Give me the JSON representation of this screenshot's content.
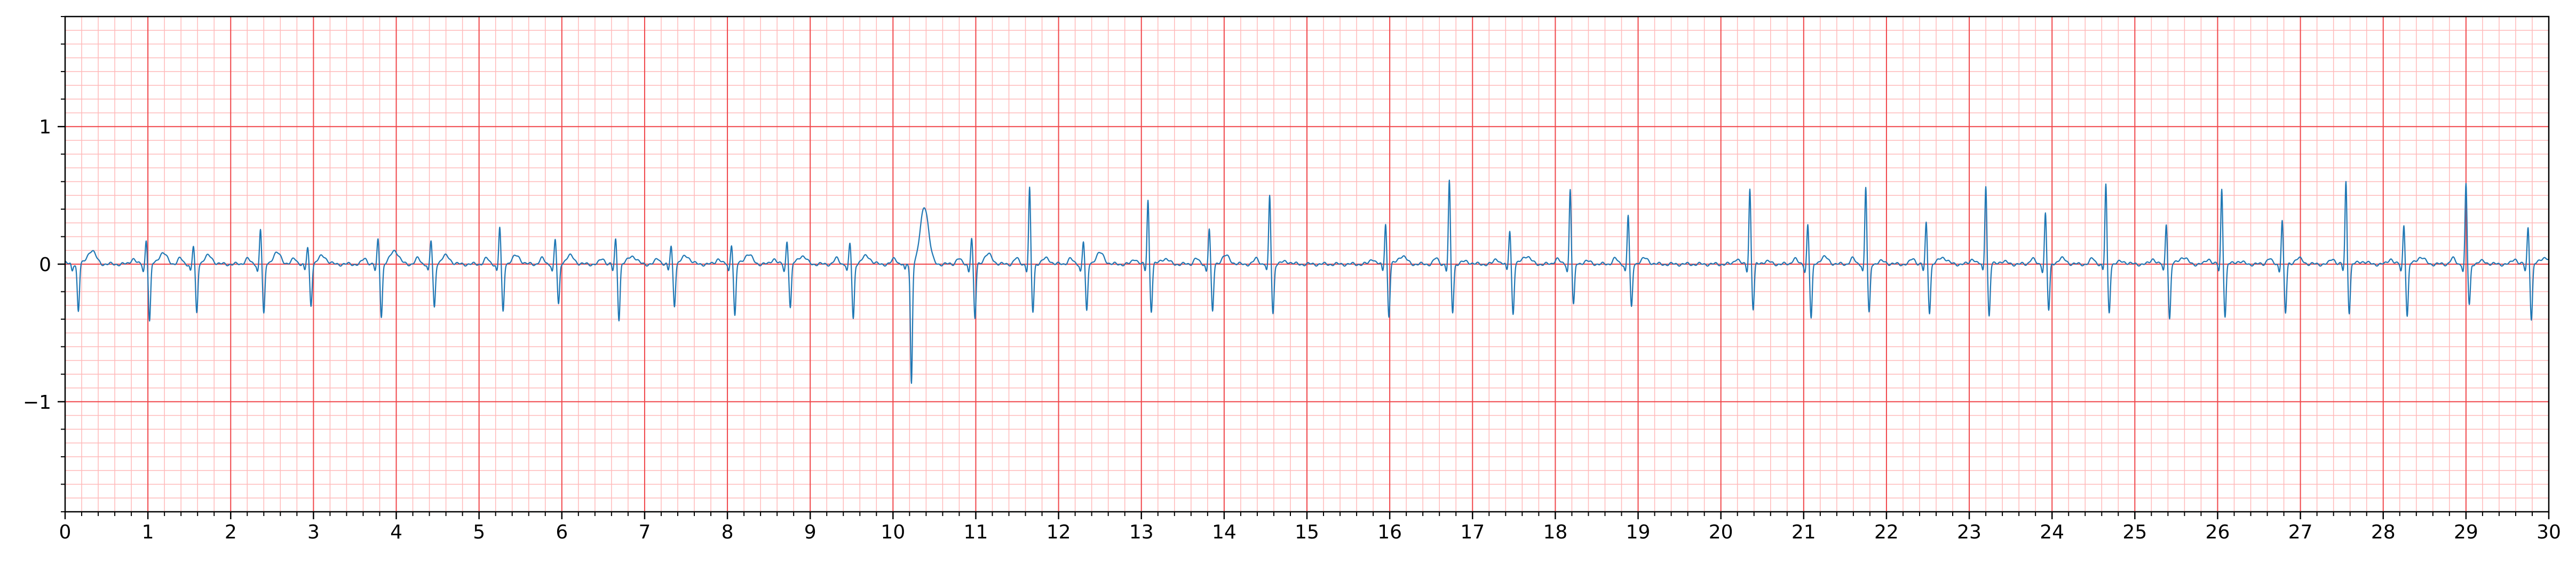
{
  "chart_data": {
    "type": "line",
    "title": "",
    "xlabel": "",
    "ylabel": "",
    "xlim": [
      0,
      30
    ],
    "ylim": [
      -1.8,
      1.8
    ],
    "x_ticks": [
      0,
      1,
      2,
      3,
      4,
      5,
      6,
      7,
      8,
      9,
      10,
      11,
      12,
      13,
      14,
      15,
      16,
      17,
      18,
      19,
      20,
      21,
      22,
      23,
      24,
      25,
      26,
      27,
      28,
      29,
      30
    ],
    "x_tick_labels": [
      "0",
      "1",
      "2",
      "3",
      "4",
      "5",
      "6",
      "7",
      "8",
      "9",
      "10",
      "11",
      "12",
      "13",
      "14",
      "15",
      "16",
      "17",
      "18",
      "19",
      "20",
      "21",
      "22",
      "23",
      "24",
      "25",
      "26",
      "27",
      "28",
      "29",
      "30"
    ],
    "y_ticks": [
      -1,
      0,
      1
    ],
    "y_tick_labels": [
      "−1",
      "0",
      "1"
    ],
    "grid": {
      "major_x_step": 1,
      "minor_x_step": 0.2,
      "major_y_step": 1,
      "minor_y_step": 0.1
    },
    "colors": {
      "trace": "#1f77b4",
      "major_grid": "#f0464a",
      "minor_grid": "#ffb9b9",
      "axes": "#000000"
    },
    "series": [
      {
        "beats": [
          {
            "t": 0.12,
            "r": 0.0,
            "s": -0.34,
            "tw": 0.1,
            "ta": 0.2
          },
          {
            "t": 0.98,
            "r": 0.18,
            "s": -0.42,
            "tw": 0.08,
            "ta": 0.2
          },
          {
            "t": 1.55,
            "r": 0.13,
            "s": -0.36,
            "tw": 0.06,
            "ta": 0.18
          },
          {
            "t": 2.36,
            "r": 0.26,
            "s": -0.37,
            "tw": 0.08,
            "ta": 0.2
          },
          {
            "t": 2.93,
            "r": 0.12,
            "s": -0.3,
            "tw": 0.06,
            "ta": 0.18
          },
          {
            "t": 3.78,
            "r": 0.18,
            "s": -0.38,
            "tw": 0.1,
            "ta": 0.2
          },
          {
            "t": 4.42,
            "r": 0.17,
            "s": -0.32,
            "tw": 0.06,
            "ta": 0.18
          },
          {
            "t": 5.25,
            "r": 0.27,
            "s": -0.35,
            "tw": 0.06,
            "ta": 0.2
          },
          {
            "t": 5.92,
            "r": 0.18,
            "s": -0.3,
            "tw": 0.06,
            "ta": 0.18
          },
          {
            "t": 6.65,
            "r": 0.18,
            "s": -0.4,
            "tw": 0.06,
            "ta": 0.2
          },
          {
            "t": 7.32,
            "r": 0.13,
            "s": -0.3,
            "tw": 0.06,
            "ta": 0.18
          },
          {
            "t": 8.05,
            "r": 0.15,
            "s": -0.38,
            "tw": 0.07,
            "ta": 0.2
          },
          {
            "t": 8.72,
            "r": 0.17,
            "s": -0.32,
            "tw": 0.06,
            "ta": 0.18
          },
          {
            "t": 9.48,
            "r": 0.15,
            "s": -0.4,
            "tw": 0.06,
            "ta": 0.2
          },
          {
            "t": 10.18,
            "r": 0.0,
            "s": -1.0,
            "tw": 0.42,
            "ta": 0.2
          },
          {
            "t": 10.95,
            "r": 0.19,
            "s": -0.4,
            "tw": 0.07,
            "ta": 0.2
          },
          {
            "t": 11.65,
            "r": 0.55,
            "s": -0.35,
            "tw": 0.04,
            "ta": 0.2
          },
          {
            "t": 12.3,
            "r": 0.17,
            "s": -0.35,
            "tw": 0.08,
            "ta": 0.2
          },
          {
            "t": 13.08,
            "r": 0.47,
            "s": -0.34,
            "tw": 0.04,
            "ta": 0.2
          },
          {
            "t": 13.82,
            "r": 0.26,
            "s": -0.35,
            "tw": 0.06,
            "ta": 0.2
          },
          {
            "t": 14.55,
            "r": 0.5,
            "s": -0.36,
            "tw": 0.02,
            "ta": 0.2
          },
          {
            "t": 15.95,
            "r": 0.3,
            "s": -0.38,
            "tw": 0.06,
            "ta": 0.2
          },
          {
            "t": 16.72,
            "r": 0.6,
            "s": -0.35,
            "tw": 0.02,
            "ta": 0.2
          },
          {
            "t": 17.45,
            "r": 0.25,
            "s": -0.36,
            "tw": 0.06,
            "ta": 0.2
          },
          {
            "t": 18.18,
            "r": 0.55,
            "s": -0.3,
            "tw": 0.02,
            "ta": 0.2
          },
          {
            "t": 18.88,
            "r": 0.36,
            "s": -0.32,
            "tw": 0.04,
            "ta": 0.2
          },
          {
            "t": 20.35,
            "r": 0.55,
            "s": -0.33,
            "tw": 0.02,
            "ta": 0.2
          },
          {
            "t": 21.05,
            "r": 0.29,
            "s": -0.4,
            "tw": 0.05,
            "ta": 0.2
          },
          {
            "t": 21.75,
            "r": 0.56,
            "s": -0.36,
            "tw": 0.02,
            "ta": 0.2
          },
          {
            "t": 22.48,
            "r": 0.3,
            "s": -0.35,
            "tw": 0.05,
            "ta": 0.2
          },
          {
            "t": 23.2,
            "r": 0.58,
            "s": -0.38,
            "tw": 0.02,
            "ta": 0.2
          },
          {
            "t": 23.92,
            "r": 0.37,
            "s": -0.34,
            "tw": 0.04,
            "ta": 0.2
          },
          {
            "t": 24.65,
            "r": 0.58,
            "s": -0.35,
            "tw": 0.02,
            "ta": 0.2
          },
          {
            "t": 25.38,
            "r": 0.3,
            "s": -0.4,
            "tw": 0.05,
            "ta": 0.2
          },
          {
            "t": 26.05,
            "r": 0.55,
            "s": -0.38,
            "tw": 0.02,
            "ta": 0.2
          },
          {
            "t": 26.78,
            "r": 0.32,
            "s": -0.36,
            "tw": 0.04,
            "ta": 0.2
          },
          {
            "t": 27.55,
            "r": 0.6,
            "s": -0.35,
            "tw": 0.02,
            "ta": 0.2
          },
          {
            "t": 28.25,
            "r": 0.29,
            "s": -0.38,
            "tw": 0.05,
            "ta": 0.2
          },
          {
            "t": 29.0,
            "r": 0.58,
            "s": -0.3,
            "tw": 0.02,
            "ta": 0.2
          },
          {
            "t": 29.75,
            "r": 0.27,
            "s": -0.4,
            "tw": 0.05,
            "ta": 0.2
          }
        ]
      }
    ]
  }
}
